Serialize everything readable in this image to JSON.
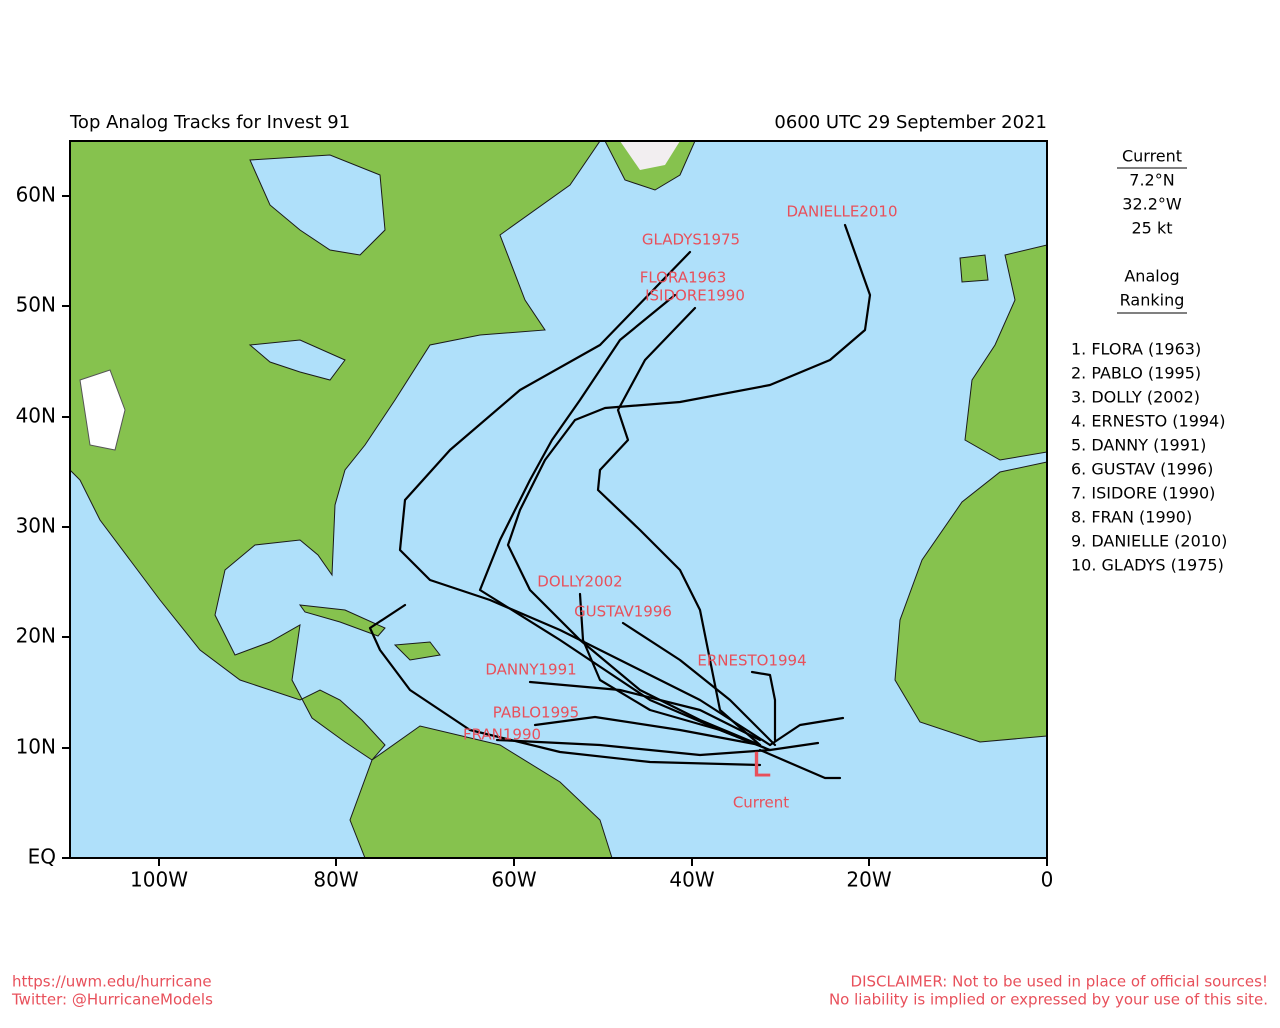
{
  "header": {
    "title": "Top Analog Tracks for Invest 91",
    "time": "0600 UTC 29 September 2021"
  },
  "map": {
    "lat_labels": [
      "60N",
      "50N",
      "40N",
      "30N",
      "20N",
      "10N",
      "EQ"
    ],
    "lon_labels": [
      "100W",
      "80W",
      "60W",
      "40W",
      "20W",
      "0"
    ],
    "storm_symbol": "L",
    "storm_caption": "Current",
    "track_labels": [
      "DANIELLE2010",
      "GLADYS1975",
      "FLORA1963",
      "ISIDORE1990",
      "DOLLY2002",
      "GUSTAV1996",
      "ERNESTO1994",
      "DANNY1991",
      "PABLO1995",
      "FRAN1990"
    ]
  },
  "sidebar": {
    "current_heading": "Current",
    "current_lat": "7.2°N",
    "current_lon": "32.2°W",
    "current_wind": "25 kt",
    "ranking_heading": [
      "Analog",
      "Ranking"
    ],
    "ranking": [
      "1.  FLORA (1963)",
      "2.  PABLO (1995)",
      "3.  DOLLY (2002)",
      "4.  ERNESTO (1994)",
      "5.  DANNY (1991)",
      "6.  GUSTAV (1996)",
      "7.  ISIDORE (1990)",
      "8.  FRAN (1990)",
      "9.  DANIELLE (2010)",
      "10. GLADYS (1975)"
    ]
  },
  "footer": {
    "url": "https://uwm.edu/hurricane",
    "twitter": "Twitter: @HurricaneModels",
    "disclaimer": "DISCLAIMER: Not to be used in place of official sources!",
    "liability": "No liability is implied or expressed by your use of this site."
  }
}
